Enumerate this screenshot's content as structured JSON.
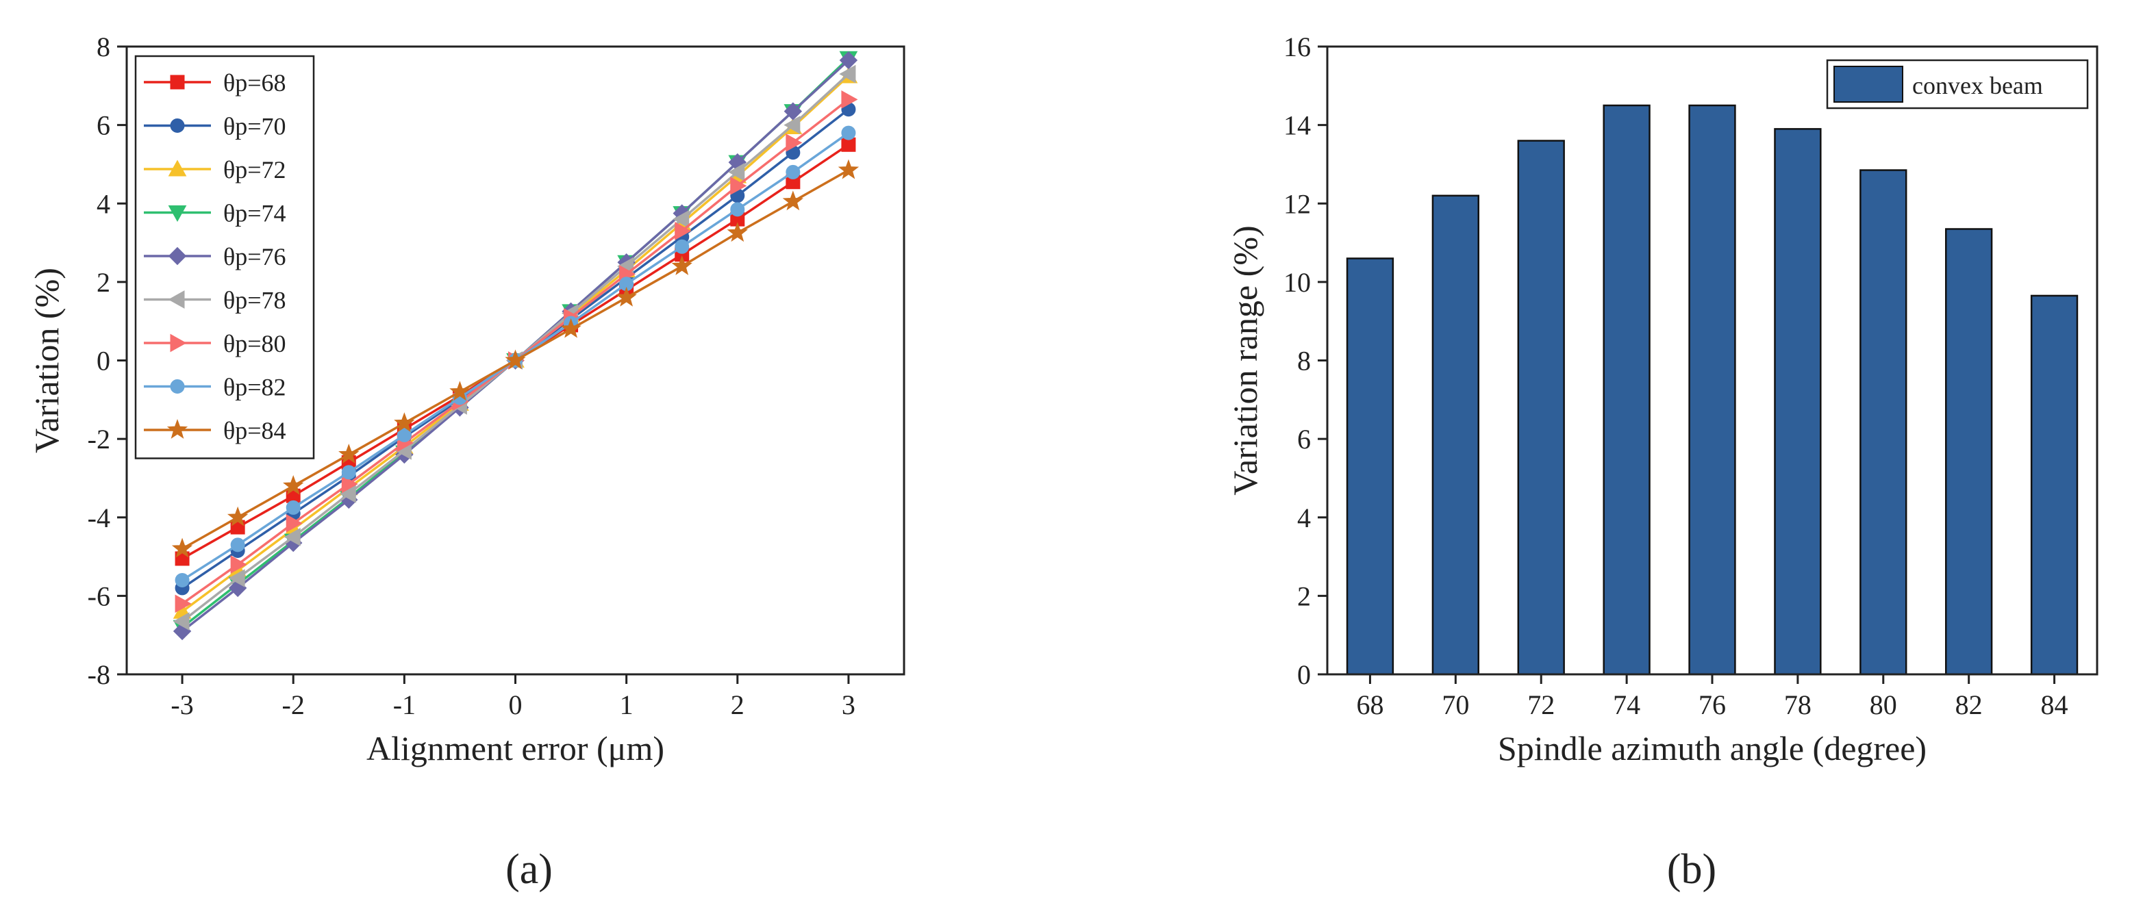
{
  "chart_data": [
    {
      "type": "line",
      "panel_label": "(a)",
      "title": "",
      "xlabel": "Alignment error (μm)",
      "ylabel": "Variation (%)",
      "xlim": [
        -3.5,
        3.5
      ],
      "ylim": [
        -8,
        8
      ],
      "xticks": [
        -3,
        -2,
        -1,
        0,
        1,
        2,
        3
      ],
      "yticks": [
        -8,
        -6,
        -4,
        -2,
        0,
        2,
        4,
        6,
        8
      ],
      "grid": false,
      "legend_position": "top-left",
      "x": [
        -3,
        -2.5,
        -2,
        -1.5,
        -1,
        -0.5,
        0,
        0.5,
        1,
        1.5,
        2,
        2.5,
        3
      ],
      "series": [
        {
          "name": "θp=68",
          "color": "#e8221b",
          "marker": "square",
          "values": [
            -5.05,
            -4.25,
            -3.45,
            -2.6,
            -1.75,
            -0.9,
            0,
            0.9,
            1.8,
            2.7,
            3.6,
            4.55,
            5.5
          ]
        },
        {
          "name": "θp=70",
          "color": "#2f5fa8",
          "marker": "circle",
          "values": [
            -5.8,
            -4.85,
            -3.9,
            -2.95,
            -1.95,
            -1.0,
            0,
            1.05,
            2.1,
            3.15,
            4.2,
            5.3,
            6.4
          ]
        },
        {
          "name": "θp=72",
          "color": "#f6c12a",
          "marker": "triangle-up",
          "values": [
            -6.4,
            -5.35,
            -4.3,
            -3.25,
            -2.2,
            -1.1,
            0,
            1.15,
            2.3,
            3.5,
            4.7,
            5.95,
            7.25
          ]
        },
        {
          "name": "θp=74",
          "color": "#2fbf70",
          "marker": "triangle-down",
          "values": [
            -6.8,
            -5.7,
            -4.6,
            -3.5,
            -2.35,
            -1.2,
            0,
            1.25,
            2.5,
            3.75,
            5.05,
            6.35,
            7.7
          ]
        },
        {
          "name": "θp=76",
          "color": "#6b68a8",
          "marker": "diamond",
          "values": [
            -6.9,
            -5.8,
            -4.65,
            -3.55,
            -2.4,
            -1.2,
            0,
            1.25,
            2.5,
            3.75,
            5.05,
            6.35,
            7.65
          ]
        },
        {
          "name": "θp=78",
          "color": "#a9a9a9",
          "marker": "triangle-left",
          "values": [
            -6.65,
            -5.55,
            -4.5,
            -3.4,
            -2.3,
            -1.15,
            0,
            1.2,
            2.4,
            3.6,
            4.8,
            6.0,
            7.3
          ]
        },
        {
          "name": "θp=80",
          "color": "#f76d6d",
          "marker": "triangle-right",
          "values": [
            -6.2,
            -5.2,
            -4.15,
            -3.15,
            -2.1,
            -1.05,
            0,
            1.1,
            2.2,
            3.3,
            4.45,
            5.55,
            6.65
          ]
        },
        {
          "name": "θp=82",
          "color": "#69a6d9",
          "marker": "circle",
          "values": [
            -5.6,
            -4.7,
            -3.75,
            -2.85,
            -1.9,
            -0.95,
            0,
            0.95,
            1.95,
            2.9,
            3.85,
            4.8,
            5.8
          ]
        },
        {
          "name": "θp=84",
          "color": "#cc6f1c",
          "marker": "star",
          "values": [
            -4.8,
            -4.0,
            -3.2,
            -2.4,
            -1.6,
            -0.8,
            0,
            0.8,
            1.6,
            2.4,
            3.25,
            4.05,
            4.85
          ]
        }
      ]
    },
    {
      "type": "bar",
      "panel_label": "(b)",
      "title": "",
      "xlabel": "Spindle azimuth angle (degree)",
      "ylabel": "Variation range (%)",
      "ylim": [
        0,
        16
      ],
      "yticks": [
        0,
        2,
        4,
        6,
        8,
        10,
        12,
        14,
        16
      ],
      "grid": false,
      "legend_position": "top-right",
      "categories": [
        "68",
        "70",
        "72",
        "74",
        "76",
        "78",
        "80",
        "82",
        "84"
      ],
      "series": [
        {
          "name": "convex beam",
          "color": "#2f5f98",
          "values": [
            10.6,
            12.2,
            13.6,
            14.5,
            14.5,
            13.9,
            12.85,
            11.35,
            9.65
          ]
        }
      ]
    }
  ]
}
